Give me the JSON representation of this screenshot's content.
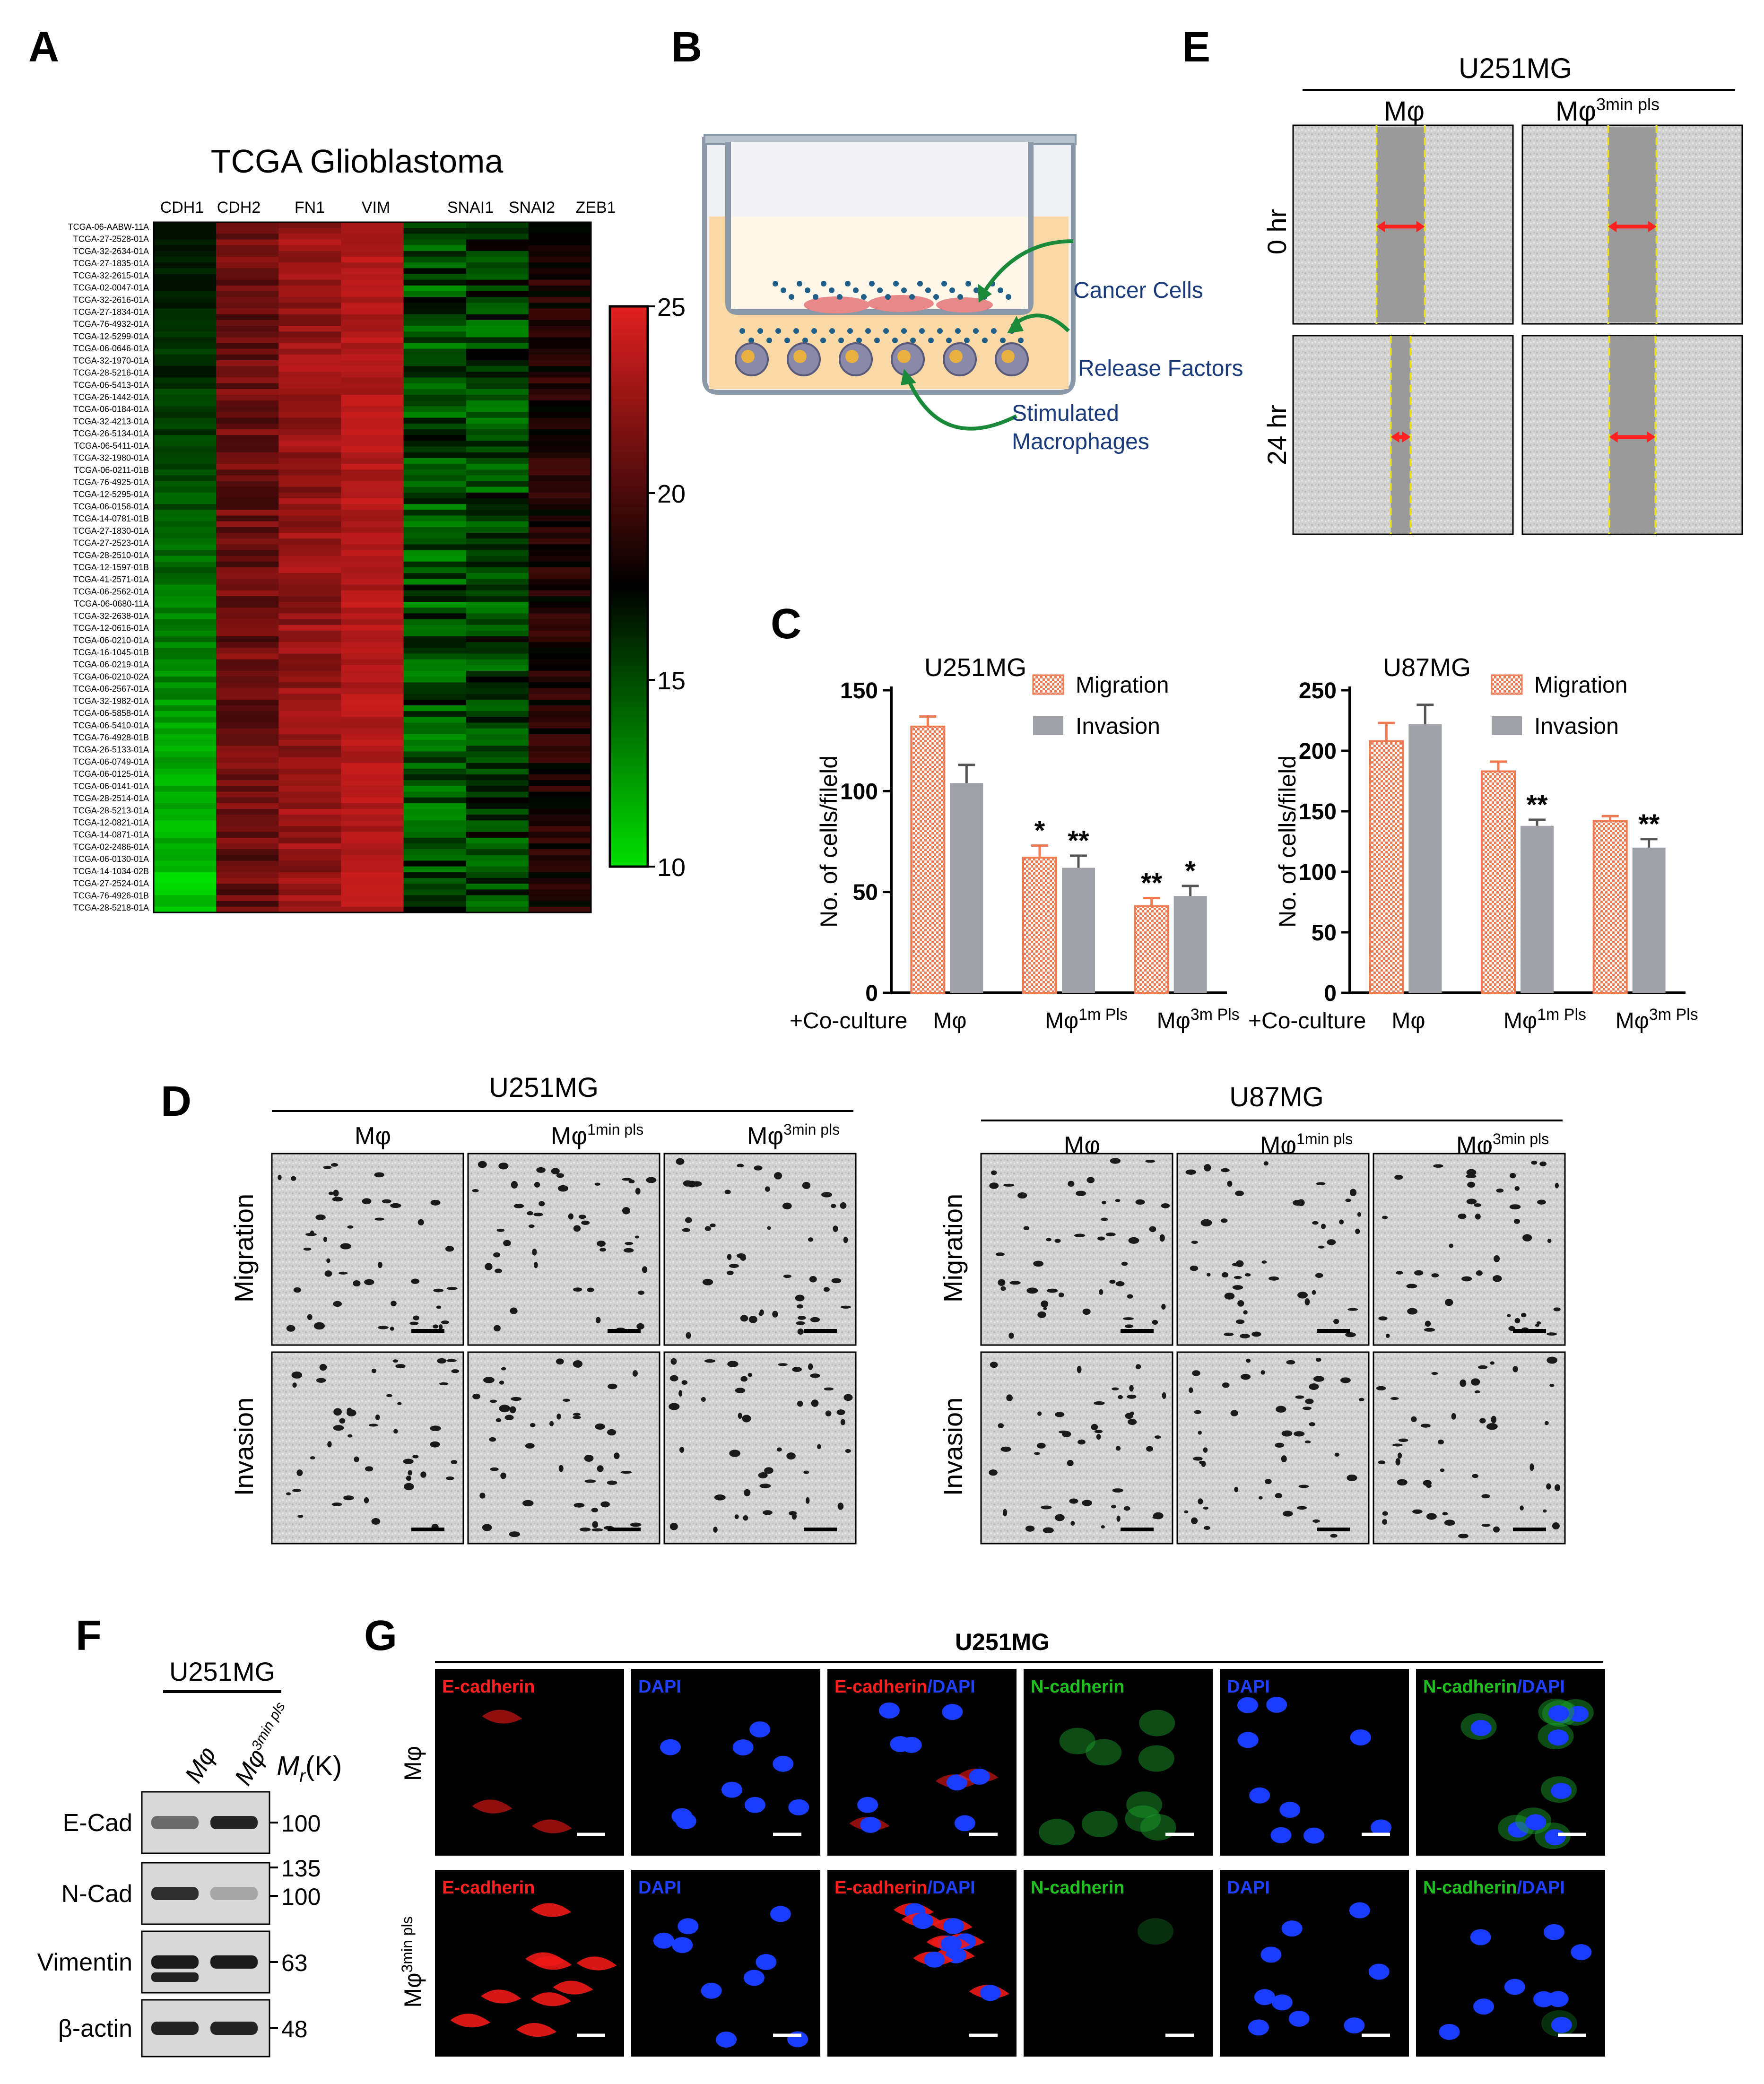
{
  "panels": {
    "a": "A",
    "b": "B",
    "c": "C",
    "d": "D",
    "e": "E",
    "f": "F",
    "g": "G"
  },
  "heatmap": {
    "title": "TCGA Glioblastoma",
    "columns": [
      "CDH1",
      "CDH2",
      "FN1",
      "VIM",
      "SNAI1",
      "SNAI2",
      "ZEB1"
    ],
    "samples": [
      "TCGA-06-AABW-11A",
      "TCGA-27-2528-01A",
      "TCGA-32-2634-01A",
      "TCGA-27-1835-01A",
      "TCGA-32-2615-01A",
      "TCGA-02-0047-01A",
      "TCGA-32-2616-01A",
      "TCGA-27-1834-01A",
      "TCGA-76-4932-01A",
      "TCGA-12-5299-01A",
      "TCGA-06-0646-01A",
      "TCGA-32-1970-01A",
      "TCGA-28-5216-01A",
      "TCGA-06-5413-01A",
      "TCGA-26-1442-01A",
      "TCGA-06-0184-01A",
      "TCGA-32-4213-01A",
      "TCGA-26-5134-01A",
      "TCGA-06-5411-01A",
      "TCGA-32-1980-01A",
      "TCGA-06-0211-01B",
      "TCGA-76-4925-01A",
      "TCGA-12-5295-01A",
      "TCGA-06-0156-01A",
      "TCGA-14-0781-01B",
      "TCGA-27-1830-01A",
      "TCGA-27-2523-01A",
      "TCGA-28-2510-01A",
      "TCGA-12-1597-01B",
      "TCGA-41-2571-01A",
      "TCGA-06-2562-01A",
      "TCGA-06-0680-11A",
      "TCGA-32-2638-01A",
      "TCGA-12-0616-01A",
      "TCGA-06-0210-01A",
      "TCGA-16-1045-01B",
      "TCGA-06-0219-01A",
      "TCGA-06-0210-02A",
      "TCGA-06-2567-01A",
      "TCGA-32-1982-01A",
      "TCGA-06-5858-01A",
      "TCGA-06-5410-01A",
      "TCGA-76-4928-01B",
      "TCGA-26-5133-01A",
      "TCGA-06-0749-01A",
      "TCGA-06-0125-01A",
      "TCGA-06-0141-01A",
      "TCGA-28-2514-01A",
      "TCGA-28-5213-01A",
      "TCGA-12-0821-01A",
      "TCGA-14-0871-01A",
      "TCGA-02-2486-01A",
      "TCGA-06-0130-01A",
      "TCGA-14-1034-02B",
      "TCGA-27-2524-01A",
      "TCGA-76-4926-01B",
      "TCGA-28-5218-01A"
    ],
    "colorbar": {
      "ticks": [
        "25",
        "20",
        "15",
        "10"
      ],
      "min": 10,
      "max": 25,
      "low_color": "#00e000",
      "mid_color": "#000000",
      "high_color": "#e02020"
    }
  },
  "diagram_b": {
    "labels": [
      "Cancer Cells",
      "Release Factors",
      "Stimulated",
      "Macrophages"
    ]
  },
  "panel_e": {
    "cell_line": "U251MG",
    "columns": [
      "Mφ",
      "Mφ"
    ],
    "col2_sup": "3min  pls",
    "rows": [
      "0 hr",
      "24 hr"
    ],
    "gap_fraction": [
      [
        0.22,
        0.22
      ],
      [
        0.09,
        0.21
      ]
    ]
  },
  "chart_data": [
    {
      "type": "bar",
      "title": "U251MG",
      "ylabel": "No. of cells/fileld",
      "xlabel_prefix": "+Co-culture",
      "ylim": [
        0,
        150
      ],
      "yticks": [
        0,
        50,
        100,
        150
      ],
      "categories": [
        {
          "base": "Mφ",
          "sup": ""
        },
        {
          "base": "Mφ",
          "sup": "1m Pls"
        },
        {
          "base": "Mφ",
          "sup": "3m Pls"
        }
      ],
      "series": [
        {
          "name": "Migration",
          "color": "#f07a52",
          "values": [
            132,
            67,
            43
          ],
          "errors": [
            5,
            6,
            4
          ],
          "sig": [
            "",
            "*",
            "**"
          ]
        },
        {
          "name": "Invasion",
          "color": "#a0a0a8",
          "values": [
            104,
            62,
            48
          ],
          "errors": [
            9,
            6,
            5
          ],
          "sig": [
            "",
            "**",
            "*"
          ]
        }
      ]
    },
    {
      "type": "bar",
      "title": "U87MG",
      "ylabel": "No. of cells/fileld",
      "xlabel_prefix": "+Co-culture",
      "ylim": [
        0,
        250
      ],
      "yticks": [
        0,
        50,
        100,
        150,
        200,
        250
      ],
      "categories": [
        {
          "base": "Mφ",
          "sup": ""
        },
        {
          "base": "Mφ",
          "sup": "1m Pls"
        },
        {
          "base": "Mφ",
          "sup": "3m Pls"
        }
      ],
      "series": [
        {
          "name": "Migration",
          "color": "#f07a52",
          "values": [
            208,
            183,
            142
          ],
          "errors": [
            15,
            8,
            4
          ],
          "sig": [
            "",
            "",
            ""
          ]
        },
        {
          "name": "Invasion",
          "color": "#a0a0a8",
          "values": [
            222,
            138,
            120
          ],
          "errors": [
            16,
            5,
            7
          ],
          "sig": [
            "",
            "**",
            "**"
          ]
        }
      ]
    }
  ],
  "panel_d": {
    "groups": [
      {
        "title": "U251MG"
      },
      {
        "title": "U87MG"
      }
    ],
    "cols": [
      {
        "base": "Mφ",
        "sup": ""
      },
      {
        "base": "Mφ",
        "sup": "1min pls"
      },
      {
        "base": "Mφ",
        "sup": "3min pls"
      }
    ],
    "rows": [
      "Migration",
      "Invasion"
    ]
  },
  "panel_f": {
    "cell_line": "U251MG",
    "lanes": [
      {
        "base": "Mφ",
        "sup": ""
      },
      {
        "base": "Mφ",
        "sup": "3min pls"
      }
    ],
    "mr": "M",
    "mr_sub": "r",
    "mr_unit": "(K)",
    "rows": [
      {
        "label": "E-Cad",
        "markers": [
          "100"
        ]
      },
      {
        "label": "N-Cad",
        "markers": [
          "135",
          "100"
        ]
      },
      {
        "label": "Vimentin",
        "markers": [
          "63"
        ]
      },
      {
        "label": "β-actin",
        "markers": [
          "48"
        ]
      }
    ]
  },
  "panel_g": {
    "title": "U251MG",
    "row1": "Mφ",
    "row2": "Mφ",
    "row2_sup": "3min pls",
    "tiles": [
      {
        "text": "E-cadherin",
        "color": "#ff2020"
      },
      {
        "text": "DAPI",
        "color": "#2040ff"
      },
      {
        "text": "E-cadherin",
        "text2": "/DAPI",
        "color": "#ff2020",
        "color2": "#2040ff"
      },
      {
        "text": "N-cadherin",
        "color": "#20c020"
      },
      {
        "text": "DAPI",
        "color": "#2040ff"
      },
      {
        "text": "N-cadherin",
        "text2": "/DAPI",
        "color": "#20c020",
        "color2": "#2040ff"
      }
    ]
  }
}
